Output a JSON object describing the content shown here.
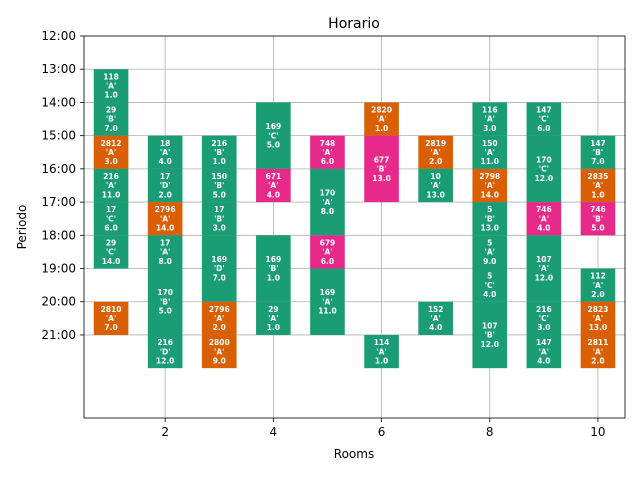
{
  "chart_data": {
    "type": "bar",
    "title": "Horario",
    "xlabel": "Rooms",
    "ylabel": "Periodo",
    "x_range": [
      0.5,
      10.5
    ],
    "y_range_hours": [
      12,
      23.5
    ],
    "y_inverted": true,
    "xticks": [
      2,
      4,
      6,
      8,
      10
    ],
    "yticks": [
      "12:00",
      "13:00",
      "14:00",
      "15:00",
      "16:00",
      "17:00",
      "18:00",
      "19:00",
      "20:00",
      "21:00"
    ],
    "grid": true,
    "colors": {
      "green": "#1a9c74",
      "orange": "#d95f02",
      "pink": "#e7298a"
    },
    "blocks": [
      {
        "room": 1,
        "start": 13,
        "end": 14,
        "lines": [
          "118",
          "'A'",
          "1.0"
        ],
        "color": "green"
      },
      {
        "room": 1,
        "start": 14,
        "end": 15,
        "lines": [
          "29",
          "'B'",
          "7.0"
        ],
        "color": "green"
      },
      {
        "room": 1,
        "start": 15,
        "end": 16,
        "lines": [
          "2812",
          "'A'",
          "3.0"
        ],
        "color": "orange"
      },
      {
        "room": 1,
        "start": 16,
        "end": 17,
        "lines": [
          "216",
          "'A'",
          "11.0"
        ],
        "color": "green"
      },
      {
        "room": 1,
        "start": 17,
        "end": 18,
        "lines": [
          "17",
          "'C'",
          "6.0"
        ],
        "color": "green"
      },
      {
        "room": 1,
        "start": 18,
        "end": 19,
        "lines": [
          "29",
          "'C'",
          "14.0"
        ],
        "color": "green"
      },
      {
        "room": 1,
        "start": 20,
        "end": 21,
        "lines": [
          "2810",
          "'A'",
          "7.0"
        ],
        "color": "orange"
      },
      {
        "room": 2,
        "start": 15,
        "end": 16,
        "lines": [
          "18",
          "'A'",
          "4.0"
        ],
        "color": "green"
      },
      {
        "room": 2,
        "start": 16,
        "end": 17,
        "lines": [
          "17",
          "'D'",
          "2.0"
        ],
        "color": "green"
      },
      {
        "room": 2,
        "start": 17,
        "end": 18,
        "lines": [
          "2796",
          "'A'",
          "14.0"
        ],
        "color": "orange"
      },
      {
        "room": 2,
        "start": 18,
        "end": 19,
        "lines": [
          "17",
          "'A'",
          "8.0"
        ],
        "color": "green"
      },
      {
        "room": 2,
        "start": 19,
        "end": 21,
        "lines": [
          "170",
          "'B'",
          "5.0"
        ],
        "color": "green"
      },
      {
        "room": 2,
        "start": 21,
        "end": 22,
        "lines": [
          "216",
          "'D'",
          "12.0"
        ],
        "color": "green"
      },
      {
        "room": 3,
        "start": 15,
        "end": 16,
        "lines": [
          "216",
          "'B'",
          "1.0"
        ],
        "color": "green"
      },
      {
        "room": 3,
        "start": 16,
        "end": 17,
        "lines": [
          "150",
          "'B'",
          "5.0"
        ],
        "color": "green"
      },
      {
        "room": 3,
        "start": 17,
        "end": 18,
        "lines": [
          "17",
          "'B'",
          "3.0"
        ],
        "color": "green"
      },
      {
        "room": 3,
        "start": 18,
        "end": 20,
        "lines": [
          "169",
          "'D'",
          "7.0"
        ],
        "color": "green"
      },
      {
        "room": 3,
        "start": 20,
        "end": 21,
        "lines": [
          "2796",
          "'A'",
          "2.0"
        ],
        "color": "orange"
      },
      {
        "room": 3,
        "start": 21,
        "end": 22,
        "lines": [
          "2800",
          "'A'",
          "9.0"
        ],
        "color": "orange"
      },
      {
        "room": 4,
        "start": 14,
        "end": 16,
        "lines": [
          "169",
          "'C'",
          "5.0"
        ],
        "color": "green"
      },
      {
        "room": 4,
        "start": 16,
        "end": 17,
        "lines": [
          "671",
          "'A'",
          "4.0"
        ],
        "color": "pink"
      },
      {
        "room": 4,
        "start": 18,
        "end": 20,
        "lines": [
          "169",
          "'B'",
          "1.0"
        ],
        "color": "green"
      },
      {
        "room": 4,
        "start": 20,
        "end": 21,
        "lines": [
          "29",
          "'A'",
          "1.0"
        ],
        "color": "green"
      },
      {
        "room": 5,
        "start": 15,
        "end": 16,
        "lines": [
          "748",
          "'A'",
          "6.0"
        ],
        "color": "pink"
      },
      {
        "room": 5,
        "start": 16,
        "end": 18,
        "lines": [
          "170",
          "'A'",
          "8.0"
        ],
        "color": "green"
      },
      {
        "room": 5,
        "start": 18,
        "end": 19,
        "lines": [
          "679",
          "'A'",
          "6.0"
        ],
        "color": "pink"
      },
      {
        "room": 5,
        "start": 19,
        "end": 21,
        "lines": [
          "169",
          "'A'",
          "11.0"
        ],
        "color": "green"
      },
      {
        "room": 6,
        "start": 14,
        "end": 15,
        "lines": [
          "2820",
          "'A'",
          "1.0"
        ],
        "color": "orange"
      },
      {
        "room": 6,
        "start": 15,
        "end": 17,
        "lines": [
          "677",
          "'B'",
          "13.0"
        ],
        "color": "pink"
      },
      {
        "room": 6,
        "start": 21,
        "end": 22,
        "lines": [
          "114",
          "'A'",
          "1.0"
        ],
        "color": "green"
      },
      {
        "room": 7,
        "start": 15,
        "end": 16,
        "lines": [
          "2819",
          "'A'",
          "2.0"
        ],
        "color": "orange"
      },
      {
        "room": 7,
        "start": 16,
        "end": 17,
        "lines": [
          "10",
          "'A'",
          "13.0"
        ],
        "color": "green"
      },
      {
        "room": 7,
        "start": 20,
        "end": 21,
        "lines": [
          "152",
          "'A'",
          "4.0"
        ],
        "color": "green"
      },
      {
        "room": 8,
        "start": 14,
        "end": 15,
        "lines": [
          "116",
          "'A'",
          "3.0"
        ],
        "color": "green"
      },
      {
        "room": 8,
        "start": 15,
        "end": 16,
        "lines": [
          "150",
          "'A'",
          "11.0"
        ],
        "color": "green"
      },
      {
        "room": 8,
        "start": 16,
        "end": 17,
        "lines": [
          "2798",
          "'A'",
          "14.0"
        ],
        "color": "orange"
      },
      {
        "room": 8,
        "start": 17,
        "end": 18,
        "lines": [
          "5",
          "'B'",
          "13.0"
        ],
        "color": "green"
      },
      {
        "room": 8,
        "start": 18,
        "end": 19,
        "lines": [
          "5",
          "'A'",
          "9.0"
        ],
        "color": "green"
      },
      {
        "room": 8,
        "start": 19,
        "end": 20,
        "lines": [
          "5",
          "'C'",
          "4.0"
        ],
        "color": "green"
      },
      {
        "room": 8,
        "start": 20,
        "end": 22,
        "lines": [
          "107",
          "'B'",
          "12.0"
        ],
        "color": "green"
      },
      {
        "room": 9,
        "start": 14,
        "end": 15,
        "lines": [
          "147",
          "'C'",
          "6.0"
        ],
        "color": "green"
      },
      {
        "room": 9,
        "start": 15,
        "end": 17,
        "lines": [
          "170",
          "'C'",
          "12.0"
        ],
        "color": "green"
      },
      {
        "room": 9,
        "start": 17,
        "end": 18,
        "lines": [
          "746",
          "'A'",
          "4.0"
        ],
        "color": "pink"
      },
      {
        "room": 9,
        "start": 18,
        "end": 20,
        "lines": [
          "107",
          "'A'",
          "12.0"
        ],
        "color": "green"
      },
      {
        "room": 9,
        "start": 20,
        "end": 21,
        "lines": [
          "216",
          "'C'",
          "3.0"
        ],
        "color": "green"
      },
      {
        "room": 9,
        "start": 21,
        "end": 22,
        "lines": [
          "147",
          "'A'",
          "4.0"
        ],
        "color": "green"
      },
      {
        "room": 10,
        "start": 15,
        "end": 16,
        "lines": [
          "147",
          "'B'",
          "7.0"
        ],
        "color": "green"
      },
      {
        "room": 10,
        "start": 16,
        "end": 17,
        "lines": [
          "2835",
          "'A'",
          "1.0"
        ],
        "color": "orange"
      },
      {
        "room": 10,
        "start": 17,
        "end": 18,
        "lines": [
          "746",
          "'B'",
          "5.0"
        ],
        "color": "pink"
      },
      {
        "room": 10,
        "start": 19,
        "end": 20,
        "lines": [
          "112",
          "'A'",
          "2.0"
        ],
        "color": "green"
      },
      {
        "room": 10,
        "start": 20,
        "end": 21,
        "lines": [
          "2823",
          "'A'",
          "13.0"
        ],
        "color": "orange"
      },
      {
        "room": 10,
        "start": 21,
        "end": 22,
        "lines": [
          "2811",
          "'A'",
          "2.0"
        ],
        "color": "orange"
      }
    ]
  }
}
